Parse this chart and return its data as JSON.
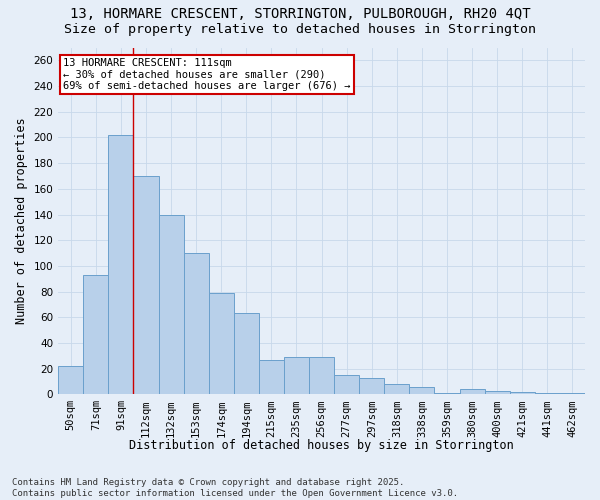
{
  "title_line1": "13, HORMARE CRESCENT, STORRINGTON, PULBOROUGH, RH20 4QT",
  "title_line2": "Size of property relative to detached houses in Storrington",
  "xlabel": "Distribution of detached houses by size in Storrington",
  "ylabel": "Number of detached properties",
  "categories": [
    "50sqm",
    "71sqm",
    "91sqm",
    "112sqm",
    "132sqm",
    "153sqm",
    "174sqm",
    "194sqm",
    "215sqm",
    "235sqm",
    "256sqm",
    "277sqm",
    "297sqm",
    "318sqm",
    "338sqm",
    "359sqm",
    "380sqm",
    "400sqm",
    "421sqm",
    "441sqm",
    "462sqm"
  ],
  "values": [
    22,
    93,
    202,
    170,
    140,
    110,
    79,
    63,
    27,
    29,
    29,
    15,
    13,
    8,
    6,
    1,
    4,
    3,
    2,
    1,
    1
  ],
  "bar_color": "#b8d0ea",
  "bar_edge_color": "#6aa0cc",
  "vline_x": 2.5,
  "annotation_text": "13 HORMARE CRESCENT: 111sqm\n← 30% of detached houses are smaller (290)\n69% of semi-detached houses are larger (676) →",
  "annotation_box_color": "#ffffff",
  "annotation_box_edge_color": "#cc0000",
  "vline_color": "#cc0000",
  "ylim": [
    0,
    270
  ],
  "yticks": [
    0,
    20,
    40,
    60,
    80,
    100,
    120,
    140,
    160,
    180,
    200,
    220,
    240,
    260
  ],
  "grid_color": "#c8d8ea",
  "background_color": "#e6eef8",
  "footnote": "Contains HM Land Registry data © Crown copyright and database right 2025.\nContains public sector information licensed under the Open Government Licence v3.0.",
  "title_fontsize": 10,
  "subtitle_fontsize": 9.5,
  "axis_label_fontsize": 8.5,
  "tick_fontsize": 7.5,
  "annotation_fontsize": 7.5,
  "footnote_fontsize": 6.5
}
